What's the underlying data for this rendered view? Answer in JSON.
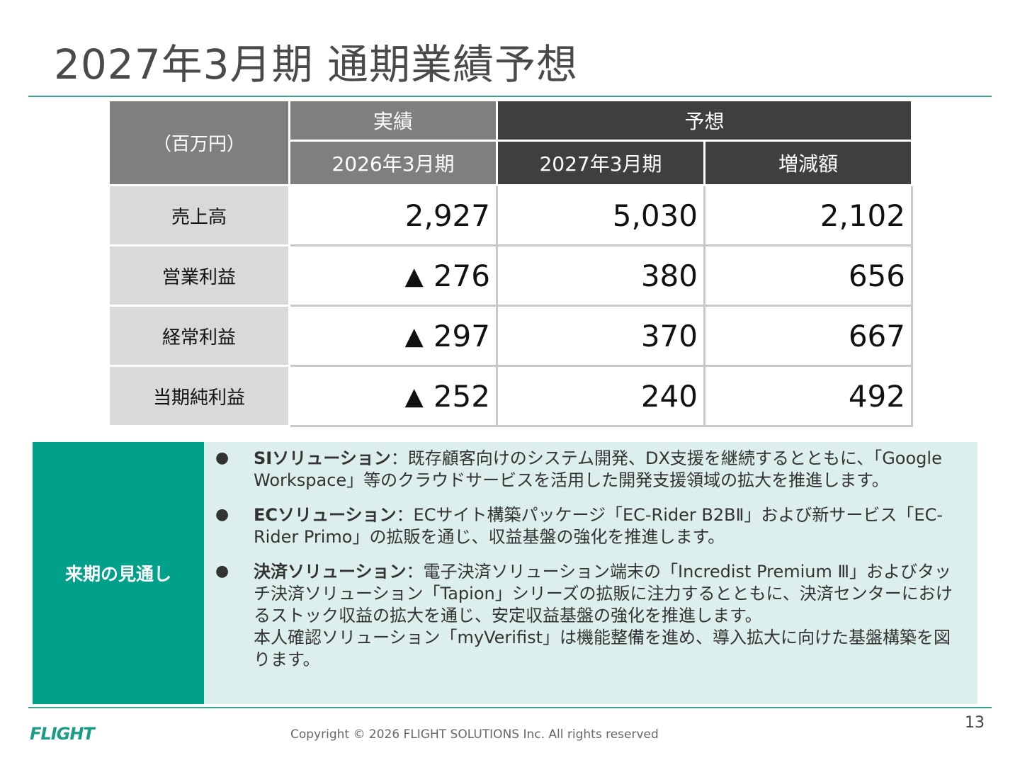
{
  "title": "2027年3月期 通期業績予想",
  "table": {
    "unit": "（百万円）",
    "group_actual": "実績",
    "group_forecast": "予想",
    "col_actual": "2026年3月期",
    "col_forecast": "2027年3月期",
    "col_change": "増減額",
    "rows": [
      {
        "label": "売上高",
        "actual_mark": "",
        "actual": "2,927",
        "forecast": "5,030",
        "change": "2,102"
      },
      {
        "label": "営業利益",
        "actual_mark": "▲",
        "actual": "276",
        "forecast": "380",
        "change": "656"
      },
      {
        "label": "経常利益",
        "actual_mark": "▲",
        "actual": "297",
        "forecast": "370",
        "change": "667"
      },
      {
        "label": "当期純利益",
        "actual_mark": "▲",
        "actual": "252",
        "forecast": "240",
        "change": "492"
      }
    ]
  },
  "outlook": {
    "label": "来期の見通し",
    "bullet_char": "●",
    "items": [
      {
        "heading": "SIソリューション",
        "sep": "：",
        "body": "既存顧客向けのシステム開発、DX支援を継続するとともに、「Google Workspace」等のクラウドサービスを活用した開発支援領域の拡大を推進します。"
      },
      {
        "heading": "ECソリューション",
        "sep": "：",
        "body": "ECサイト構築パッケージ「EC-Rider B2BⅡ」および新サービス「EC-Rider Primo」の拡販を通じ、収益基盤の強化を推進します。"
      },
      {
        "heading": "決済ソリューション",
        "sep": "：",
        "body": "電子決済ソリューション端末の「Incredist Premium Ⅲ」およびタッチ決済ソリューション「Tapion」シリーズの拡販に注力するとともに、決済センターにおけるストック収益の拡大を通じ、安定収益基盤の強化を推進します。",
        "body2": "本人確認ソリューション「myVerifist」は機能整備を進め、導入拡大に向けた基盤構築を図ります。"
      }
    ]
  },
  "footer": {
    "logo": "FLIGHT",
    "copyright": "Copyright ©  2026 FLIGHT SOLUTIONS Inc. All rights reserved",
    "page": "13"
  },
  "colors": {
    "accent": "#00a08a",
    "header_actual": "#7f7f7f",
    "header_forecast": "#3f3f3f",
    "outlook_bg": "#dcefec"
  }
}
